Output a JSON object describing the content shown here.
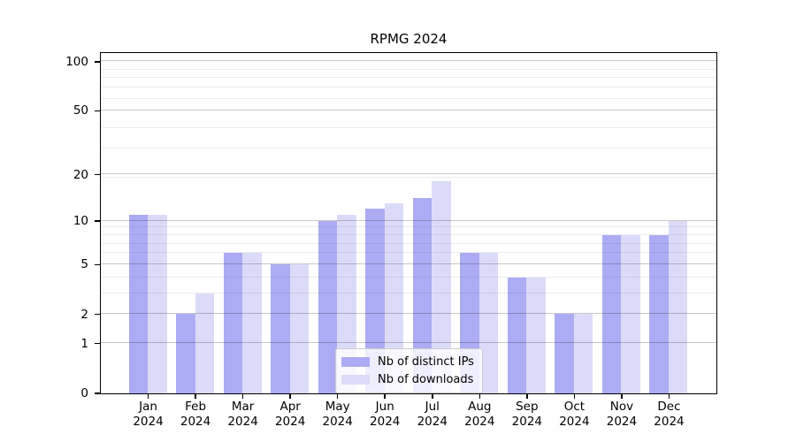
{
  "title": "RPMG 2024",
  "chart_data": {
    "type": "bar",
    "title": "RPMG 2024",
    "categories": [
      "Jan",
      "Feb",
      "Mar",
      "Apr",
      "May",
      "Jun",
      "Jul",
      "Aug",
      "Sep",
      "Oct",
      "Nov",
      "Dec"
    ],
    "category_year": "2024",
    "series": [
      {
        "name": "Nb of distinct IPs",
        "color": "#acacf4",
        "values": [
          11,
          2,
          6,
          5,
          10,
          12,
          14,
          6,
          4,
          2,
          8,
          8
        ]
      },
      {
        "name": "Nb of downloads",
        "color": "#dbdbf9",
        "values": [
          11,
          3,
          6,
          5,
          11,
          13,
          18,
          6,
          4,
          2,
          8,
          10
        ]
      }
    ],
    "xlabel": "",
    "ylabel": "",
    "yscale": "log10(1+v)",
    "ylim": [
      0,
      113
    ],
    "yticks": [
      0,
      1,
      2,
      5,
      10,
      20,
      50,
      100
    ],
    "yticks_minor": [
      3,
      4,
      6,
      7,
      8,
      9,
      19,
      29,
      39,
      59,
      69,
      79,
      89
    ],
    "grid": true,
    "legend_position": "lower center"
  },
  "colors": {
    "background": "#ffffff",
    "axis": "#000000",
    "grid_major": "rgba(0,0,0,0.22)",
    "grid_minor": "rgba(0,0,0,0.07)"
  }
}
